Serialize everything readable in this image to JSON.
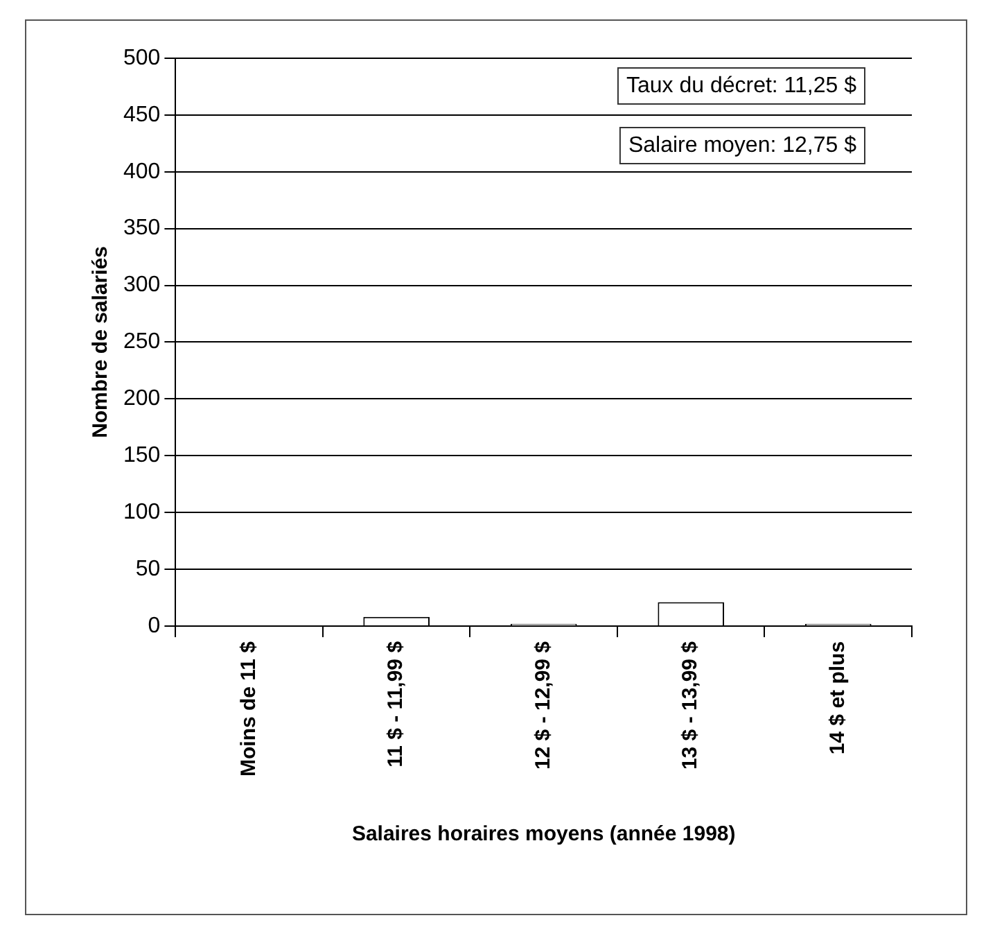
{
  "chart_data": {
    "type": "bar",
    "xlabel": "Salaires horaires moyens (année 1998)",
    "ylabel": "Nombre de salariés",
    "categories": [
      "Moins de 11 $",
      "11 $ - 11,99 $",
      "12 $ - 12,99 $",
      "13 $ - 13,99 $",
      "14 $ et plus"
    ],
    "values": [
      0,
      8,
      2,
      21,
      2
    ],
    "color": "#ffffff",
    "ylim": [
      0,
      500
    ],
    "yticks": [
      0,
      50,
      100,
      150,
      200,
      250,
      300,
      350,
      400,
      450,
      500
    ],
    "grid": "y",
    "annotations": [
      "Taux du décret: 11,25 $",
      "Salaire moyen: 12,75 $"
    ]
  }
}
